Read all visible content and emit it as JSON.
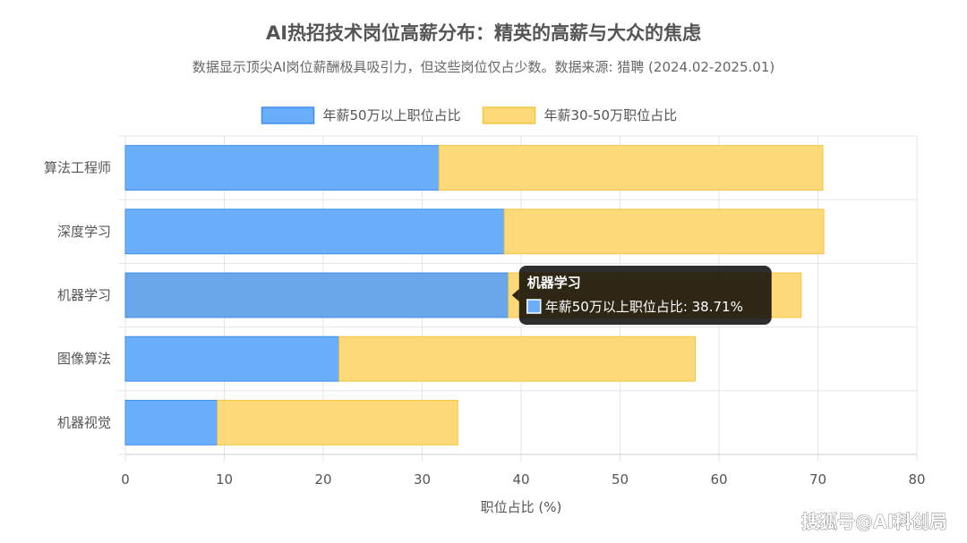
{
  "chart_data": {
    "type": "bar",
    "orientation": "horizontal",
    "stacked": true,
    "title": "AI热招技术岗位高薪分布：精英的高薪与大众的焦虑",
    "subtitle": "数据显示顶尖AI岗位薪酬极具吸引力，但这些岗位仅占少数。数据来源: 猎聘 (2024.02-2025.01)",
    "categories": [
      "算法工程师",
      "深度学习",
      "机器学习",
      "图像算法",
      "机器视觉"
    ],
    "series": [
      {
        "name": "年薪50万以上职位占比",
        "color": "#6aaefc",
        "border": "#3d8fe8",
        "values": [
          31.7,
          38.3,
          38.71,
          21.6,
          9.3
        ]
      },
      {
        "name": "年薪30-50万职位占比",
        "color": "#fdd97a",
        "border": "#f5c542",
        "values": [
          38.8,
          32.3,
          29.6,
          36.0,
          24.3
        ]
      }
    ],
    "xlabel": "职位占比 (%)",
    "ylabel": "",
    "xlim": [
      0,
      80
    ],
    "xticks": [
      "0",
      "10",
      "20",
      "30",
      "40",
      "50",
      "60",
      "70",
      "80"
    ],
    "grid": true,
    "legend_position": "top",
    "tooltip": {
      "category_index": 2,
      "series_index": 0,
      "title": "机器学习",
      "label": "年薪50万以上职位占比: 38.71%"
    }
  },
  "watermark": "搜狐号@AI科创局"
}
